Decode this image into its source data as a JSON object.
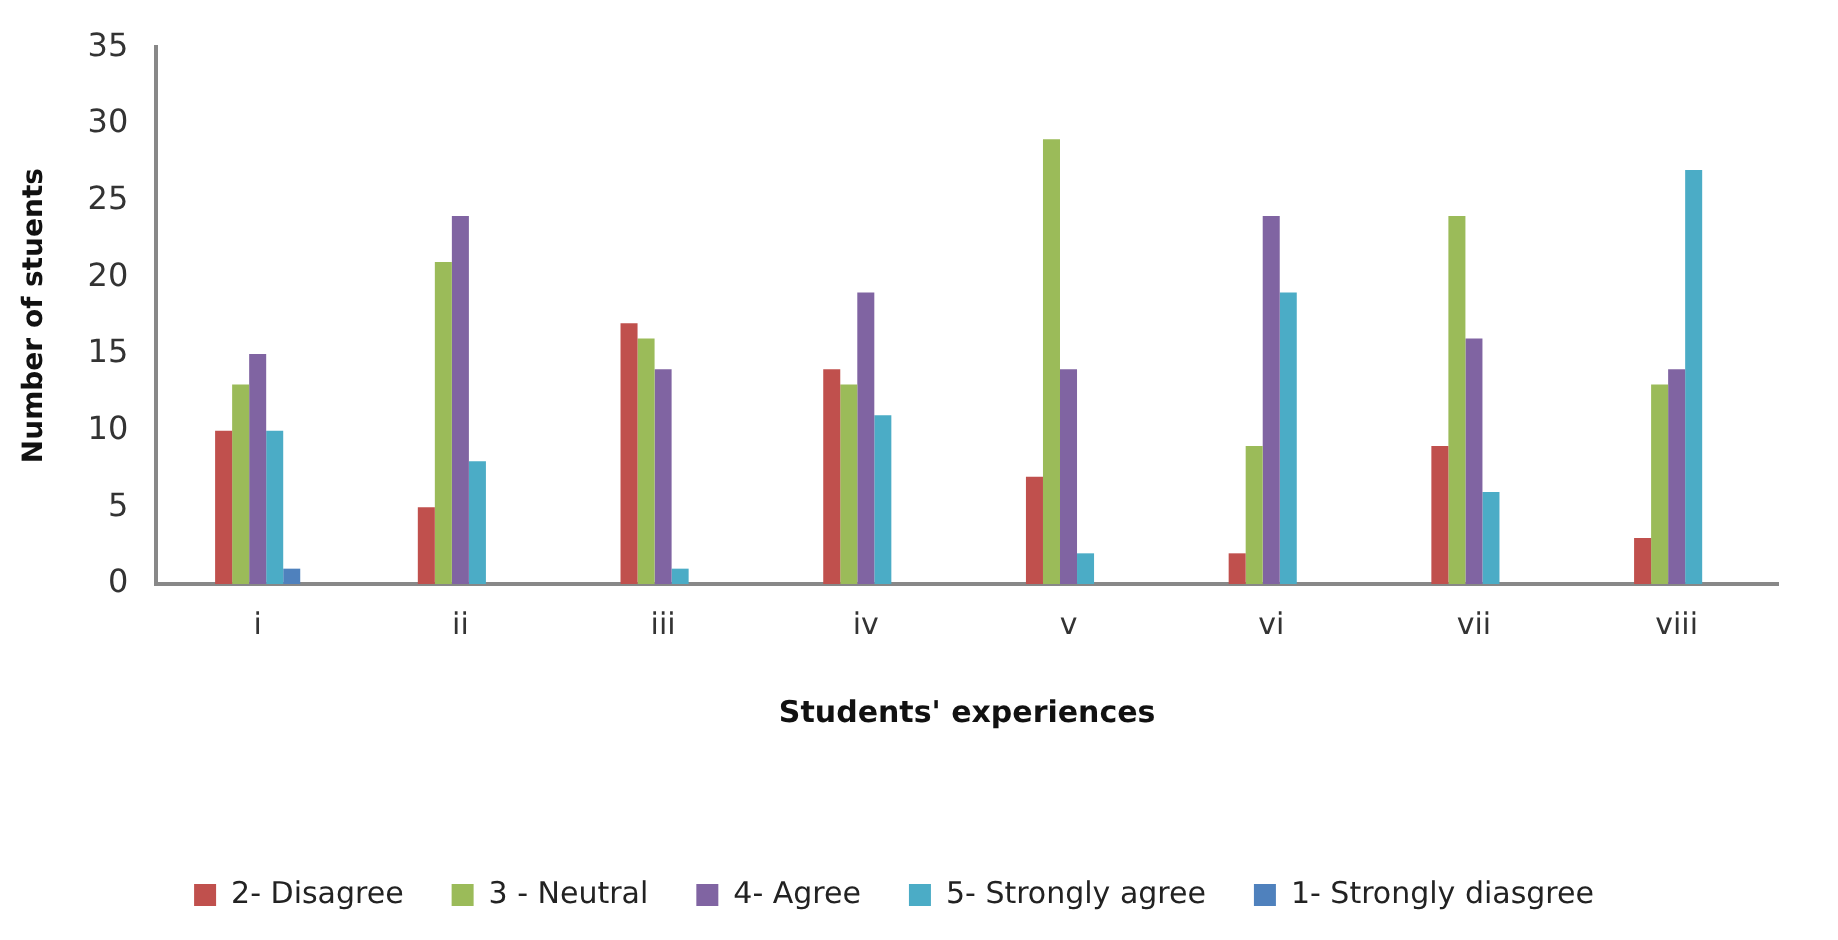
{
  "chart_data": {
    "type": "bar",
    "xlabel": "Students' experiences",
    "ylabel": "Number of stuents",
    "categories": [
      "i",
      "ii",
      "iii",
      "iv",
      "v",
      "vi",
      "vii",
      "viii"
    ],
    "series": [
      {
        "name": "2- Disagree",
        "color": "#c0504d",
        "values": [
          10,
          5,
          17,
          14,
          7,
          2,
          9,
          3
        ]
      },
      {
        "name": "3 - Neutral",
        "color": "#9bbb59",
        "values": [
          13,
          21,
          16,
          13,
          29,
          9,
          24,
          13
        ]
      },
      {
        "name": "4- Agree",
        "color": "#8064a2",
        "values": [
          15,
          24,
          14,
          19,
          14,
          24,
          16,
          14
        ]
      },
      {
        "name": "5- Strongly agree",
        "color": "#4bacc6",
        "values": [
          10,
          8,
          1,
          11,
          2,
          19,
          6,
          27
        ]
      },
      {
        "name": "1- Strongly diasgree",
        "color": "#4f81bd",
        "values": [
          1,
          0,
          0,
          0,
          0,
          0,
          0,
          0
        ]
      }
    ],
    "ylim": [
      0,
      35
    ],
    "yticks": [
      0,
      5,
      10,
      15,
      20,
      25,
      30,
      35
    ],
    "grid": false,
    "legend": "bottom"
  }
}
